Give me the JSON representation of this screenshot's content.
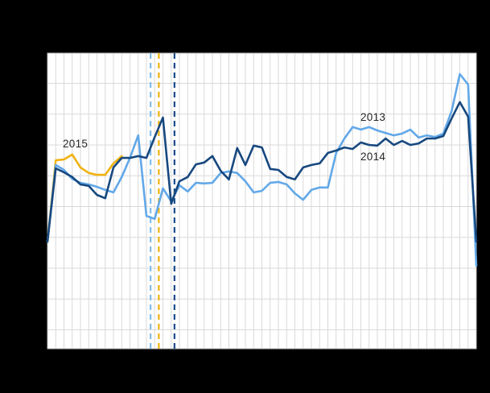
{
  "canvas": {
    "background_color": "#000000",
    "plot_background_color": "#ffffff",
    "gridline_color": "#d9d9d9",
    "plot_border_color": "#c2c2c2",
    "label_text_color": "#262626"
  },
  "chart_data": {
    "type": "line",
    "title": "",
    "x_axis": {
      "unit": "week",
      "min": 1,
      "max": 53,
      "gridline_every": 1,
      "tick_labels_visible": false
    },
    "y_axis": {
      "tick_labels_visible": false,
      "gridline_values": [
        50,
        60,
        70,
        80,
        90,
        100,
        110,
        120,
        130
      ],
      "range": [
        43.5,
        139.8
      ]
    },
    "legend_position": "inline-labels",
    "series": [
      {
        "label": "2013",
        "color": "#62a8e8",
        "points": [
          [
            1,
            78.6
          ],
          [
            2,
            103.5
          ],
          [
            3,
            101.9
          ],
          [
            4,
            99.0
          ],
          [
            5,
            97.7
          ],
          [
            6,
            97.2
          ],
          [
            7,
            96.4
          ],
          [
            8,
            95.4
          ],
          [
            9,
            94.6
          ],
          [
            10,
            99.6
          ],
          [
            11,
            105.8
          ],
          [
            12,
            113.1
          ],
          [
            13,
            87.0
          ],
          [
            14,
            86.0
          ],
          [
            15,
            95.9
          ],
          [
            16,
            91.7
          ],
          [
            17,
            96.9
          ],
          [
            18,
            94.9
          ],
          [
            19,
            97.7
          ],
          [
            20,
            97.5
          ],
          [
            21,
            97.7
          ],
          [
            22,
            100.9
          ],
          [
            23,
            101.4
          ],
          [
            24,
            100.9
          ],
          [
            25,
            98.2
          ],
          [
            26,
            94.6
          ],
          [
            27,
            95.1
          ],
          [
            28,
            97.7
          ],
          [
            29,
            98.0
          ],
          [
            30,
            97.2
          ],
          [
            31,
            94.3
          ],
          [
            32,
            92.2
          ],
          [
            33,
            95.4
          ],
          [
            34,
            96.2
          ],
          [
            35,
            96.2
          ],
          [
            36,
            107.4
          ],
          [
            37,
            112.1
          ],
          [
            38,
            115.8
          ],
          [
            39,
            115.0
          ],
          [
            40,
            115.8
          ],
          [
            41,
            114.7
          ],
          [
            42,
            113.9
          ],
          [
            43,
            113.1
          ],
          [
            44,
            113.7
          ],
          [
            45,
            115.0
          ],
          [
            46,
            112.4
          ],
          [
            47,
            113.1
          ],
          [
            48,
            112.6
          ],
          [
            49,
            113.7
          ],
          [
            50,
            121.0
          ],
          [
            51,
            133.0
          ],
          [
            52,
            129.6
          ],
          [
            53,
            70.8
          ]
        ]
      },
      {
        "label": "2014",
        "color": "#17487f",
        "points": [
          [
            1,
            78.6
          ],
          [
            2,
            102.4
          ],
          [
            3,
            101.1
          ],
          [
            4,
            99.6
          ],
          [
            5,
            97.2
          ],
          [
            6,
            96.7
          ],
          [
            7,
            93.8
          ],
          [
            8,
            92.7
          ],
          [
            9,
            102.7
          ],
          [
            10,
            105.8
          ],
          [
            11,
            105.8
          ],
          [
            12,
            106.4
          ],
          [
            13,
            105.8
          ],
          [
            14,
            112.6
          ],
          [
            15,
            118.9
          ],
          [
            16,
            90.9
          ],
          [
            17,
            98.2
          ],
          [
            18,
            99.6
          ],
          [
            19,
            103.7
          ],
          [
            20,
            104.3
          ],
          [
            21,
            106.4
          ],
          [
            22,
            101.6
          ],
          [
            23,
            98.8
          ],
          [
            24,
            109.0
          ],
          [
            25,
            103.5
          ],
          [
            26,
            109.8
          ],
          [
            27,
            109.2
          ],
          [
            28,
            102.2
          ],
          [
            29,
            101.9
          ],
          [
            30,
            99.6
          ],
          [
            31,
            98.8
          ],
          [
            32,
            102.7
          ],
          [
            33,
            103.5
          ],
          [
            34,
            104.0
          ],
          [
            35,
            107.4
          ],
          [
            36,
            108.2
          ],
          [
            37,
            109.2
          ],
          [
            38,
            108.7
          ],
          [
            39,
            110.8
          ],
          [
            40,
            110.0
          ],
          [
            41,
            109.8
          ],
          [
            42,
            112.1
          ],
          [
            43,
            110.0
          ],
          [
            44,
            111.3
          ],
          [
            45,
            110.0
          ],
          [
            46,
            110.5
          ],
          [
            47,
            112.1
          ],
          [
            48,
            112.1
          ],
          [
            49,
            112.9
          ],
          [
            50,
            118.6
          ],
          [
            51,
            123.9
          ],
          [
            52,
            119.2
          ],
          [
            53,
            78.6
          ]
        ]
      },
      {
        "label": "2015",
        "color": "#efb211",
        "points": [
          [
            1,
            78.6
          ],
          [
            2,
            105.0
          ],
          [
            3,
            105.3
          ],
          [
            4,
            106.9
          ],
          [
            5,
            102.7
          ],
          [
            6,
            100.9
          ],
          [
            7,
            100.3
          ],
          [
            8,
            100.3
          ],
          [
            9,
            104.0
          ],
          [
            10,
            106.4
          ]
        ]
      }
    ],
    "event_markers": [
      {
        "for_series": "2013",
        "week": 13.5,
        "color": "#82bdec",
        "style": "dashed"
      },
      {
        "for_series": "2015",
        "week": 14.5,
        "color": "#efb211",
        "style": "dashed"
      },
      {
        "for_series": "2014",
        "week": 16.4,
        "color": "#1a4c8c",
        "style": "dashed"
      }
    ],
    "annotations": [
      {
        "text": "2015",
        "series": "2015"
      },
      {
        "text": "2013",
        "series": "2013"
      },
      {
        "text": "2014",
        "series": "2014"
      }
    ]
  }
}
